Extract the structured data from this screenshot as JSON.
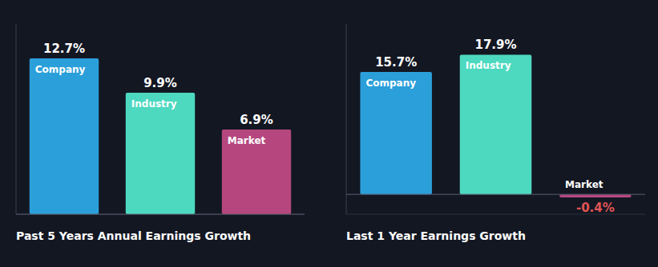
{
  "chart_data": [
    {
      "type": "bar",
      "title": "Past 5 Years Annual Earnings Growth",
      "categories": [
        "Company",
        "Industry",
        "Market"
      ],
      "values": [
        12.7,
        9.9,
        6.9
      ],
      "value_labels": [
        "12.7%",
        "9.9%",
        "6.9%"
      ],
      "colors": [
        "#2b9fda",
        "#4dd9c0",
        "#b5477e"
      ],
      "ylim": [
        0,
        15.494
      ],
      "data_labels": true,
      "tick_labels": "x"
    },
    {
      "type": "bar",
      "title": "Last 1 Year Earnings Growth",
      "categories": [
        "Company",
        "Industry",
        "Market"
      ],
      "values": [
        15.7,
        17.9,
        -0.4
      ],
      "value_labels": [
        "15.7%",
        "17.9%",
        "-0.4%"
      ],
      "colors": [
        "#2b9fda",
        "#4dd9c0",
        "#b5477e"
      ],
      "ylim": [
        -2.548,
        21.838
      ],
      "data_labels": true,
      "tick_labels": "x"
    }
  ]
}
